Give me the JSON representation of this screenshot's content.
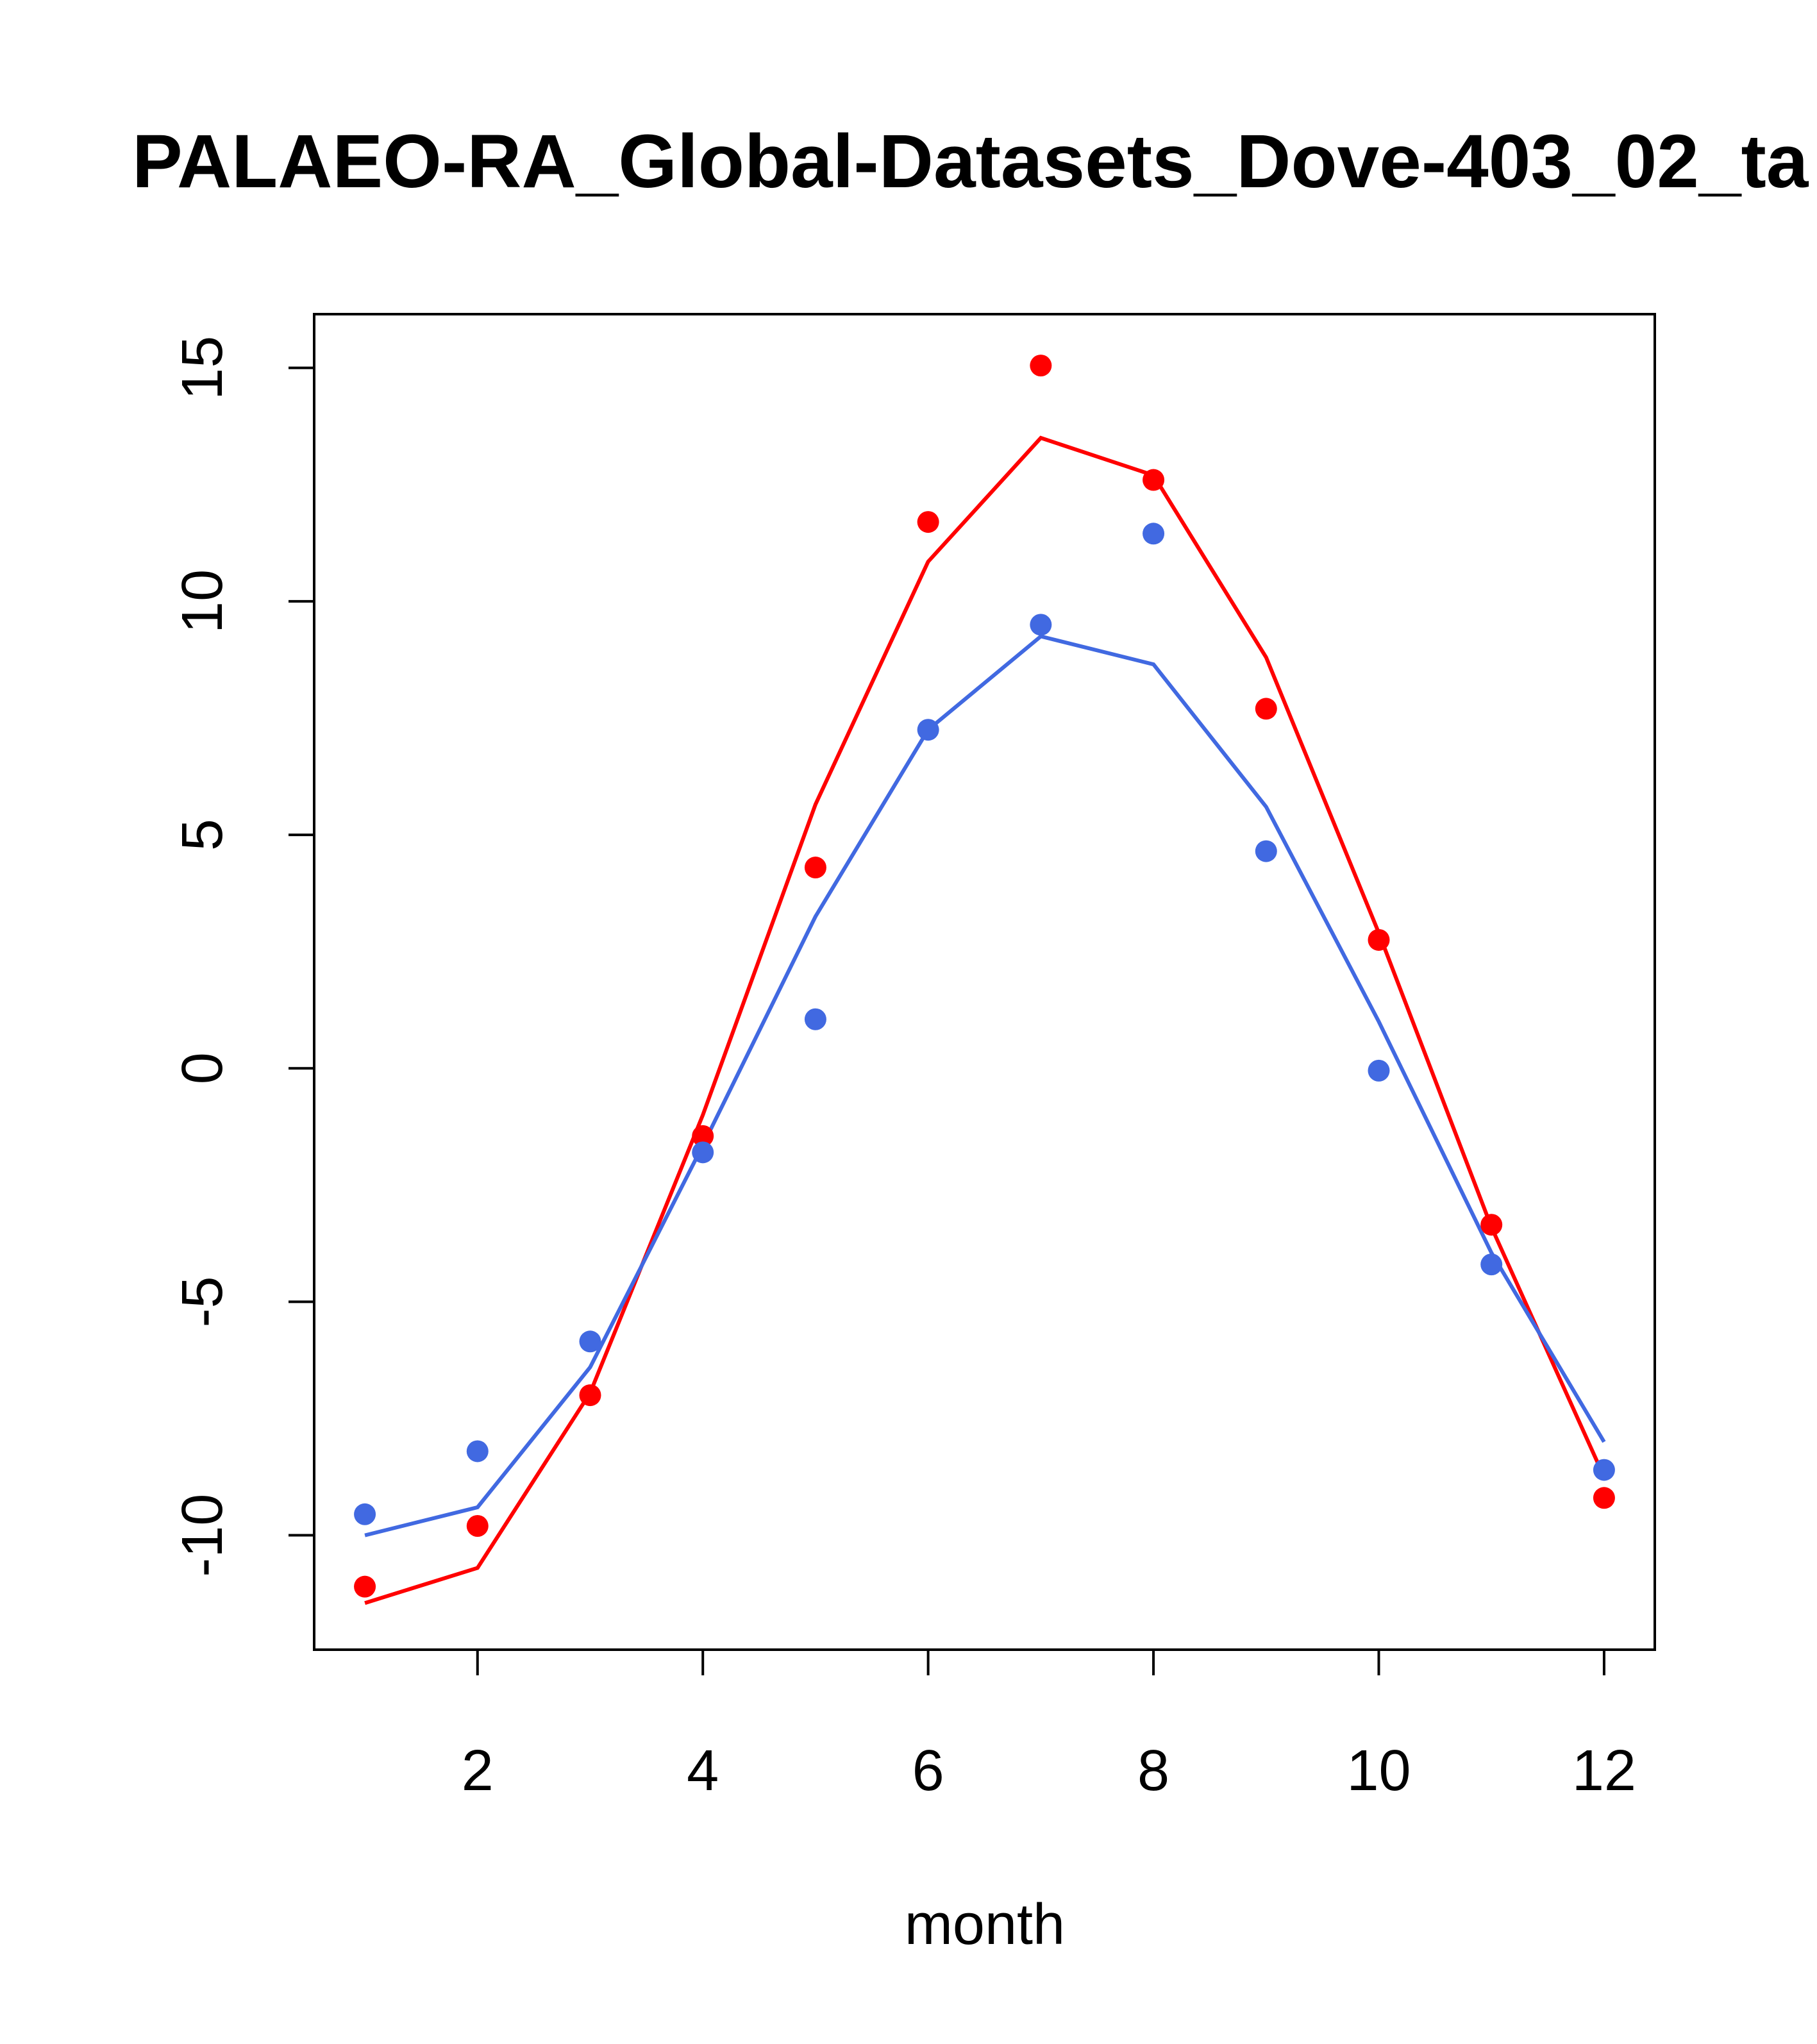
{
  "chart_data": {
    "type": "line",
    "title": "PALAEO-RA_Global-Datasets_Dove-403_02_ta",
    "xlabel": "month",
    "ylabel": "",
    "xlim": [
      0.55,
      12.45
    ],
    "ylim": [
      -12.45,
      16.15
    ],
    "x_ticks": [
      2,
      4,
      6,
      8,
      10,
      12
    ],
    "y_ticks": [
      -10,
      -5,
      0,
      5,
      10,
      15
    ],
    "grid": false,
    "legend": "none",
    "x": [
      1,
      2,
      3,
      4,
      5,
      6,
      7,
      8,
      9,
      10,
      11,
      12
    ],
    "series": [
      {
        "color": "#ff0000",
        "line": [
          -11.45,
          -10.7,
          -6.95,
          -1.0,
          5.65,
          10.85,
          13.5,
          12.7,
          8.8,
          2.9,
          -3.4,
          -8.75
        ],
        "points": [
          -11.1,
          -9.8,
          -7.0,
          -1.45,
          4.3,
          11.7,
          15.05,
          12.6,
          7.7,
          2.75,
          -3.35,
          -9.2
        ]
      },
      {
        "color": "#4169e1",
        "line": [
          -10.0,
          -9.4,
          -6.4,
          -1.65,
          3.25,
          7.25,
          9.25,
          8.65,
          5.6,
          1.0,
          -3.95,
          -8.0
        ],
        "points": [
          -9.55,
          -8.2,
          -5.85,
          -1.8,
          1.05,
          7.25,
          9.5,
          11.45,
          4.65,
          -0.05,
          -4.2,
          -8.6
        ]
      }
    ]
  }
}
